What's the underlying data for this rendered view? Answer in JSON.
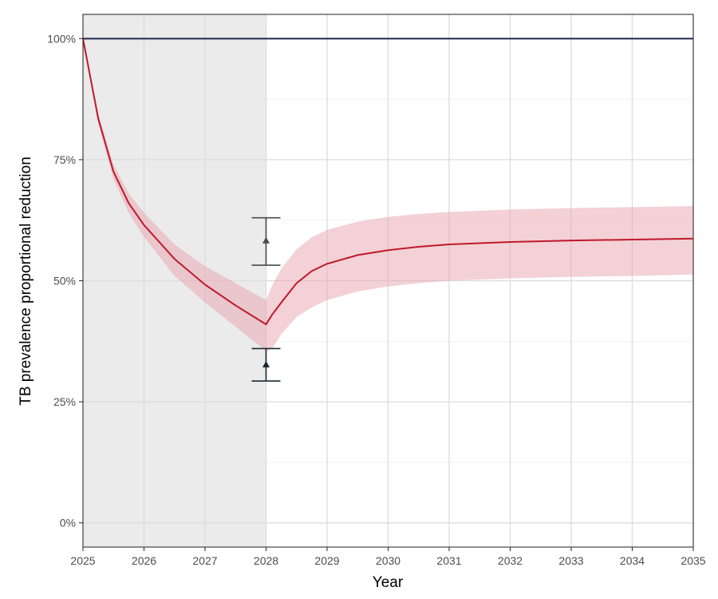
{
  "chart_data": {
    "type": "line",
    "title": "",
    "xlabel": "Year",
    "ylabel": "TB prevalence proportional reduction",
    "xlim": [
      2025,
      2035
    ],
    "ylim": [
      -0.05,
      1.05
    ],
    "x_ticks": [
      2025,
      2026,
      2027,
      2028,
      2029,
      2030,
      2031,
      2032,
      2033,
      2034,
      2035
    ],
    "x_tick_labels": [
      "2025",
      "2026",
      "2027",
      "2028",
      "2029",
      "2030",
      "2031",
      "2032",
      "2033",
      "2034",
      "2035"
    ],
    "y_ticks": [
      0,
      0.25,
      0.5,
      0.75,
      1.0
    ],
    "y_tick_labels": [
      "0%",
      "25%",
      "50%",
      "75%",
      "100%"
    ],
    "grid": true,
    "shaded_period": {
      "x_start": 2025,
      "x_end": 2028,
      "color": "#ebebeb"
    },
    "reference_line": {
      "y": 1.0,
      "color": "#1b2a4a"
    },
    "series": [
      {
        "color": "#c0182a",
        "band_color": "#e8a3ad",
        "x": [
          2025,
          2025.25,
          2025.5,
          2025.75,
          2026,
          2026.5,
          2027,
          2027.5,
          2028,
          2028.1,
          2028.25,
          2028.5,
          2028.75,
          2029,
          2029.5,
          2030,
          2030.5,
          2031,
          2032,
          2033,
          2034,
          2035
        ],
        "y": [
          1.0,
          0.835,
          0.725,
          0.66,
          0.615,
          0.545,
          0.492,
          0.449,
          0.41,
          0.43,
          0.455,
          0.495,
          0.52,
          0.535,
          0.553,
          0.563,
          0.57,
          0.575,
          0.58,
          0.583,
          0.585,
          0.587
        ],
        "lower": [
          1.0,
          0.825,
          0.71,
          0.64,
          0.59,
          0.51,
          0.455,
          0.405,
          0.355,
          0.36,
          0.39,
          0.425,
          0.445,
          0.46,
          0.478,
          0.488,
          0.495,
          0.5,
          0.505,
          0.508,
          0.51,
          0.513
        ],
        "upper": [
          1.0,
          0.845,
          0.74,
          0.68,
          0.64,
          0.575,
          0.53,
          0.495,
          0.46,
          0.49,
          0.525,
          0.565,
          0.59,
          0.605,
          0.622,
          0.632,
          0.638,
          0.642,
          0.647,
          0.65,
          0.652,
          0.654
        ]
      }
    ],
    "error_bars": [
      {
        "x": 2028,
        "y": 0.583,
        "low": 0.532,
        "high": 0.63,
        "color": "#4a4a4a"
      },
      {
        "x": 2028,
        "y": 0.327,
        "low": 0.293,
        "high": 0.36,
        "color": "#1a2a2a"
      }
    ]
  }
}
